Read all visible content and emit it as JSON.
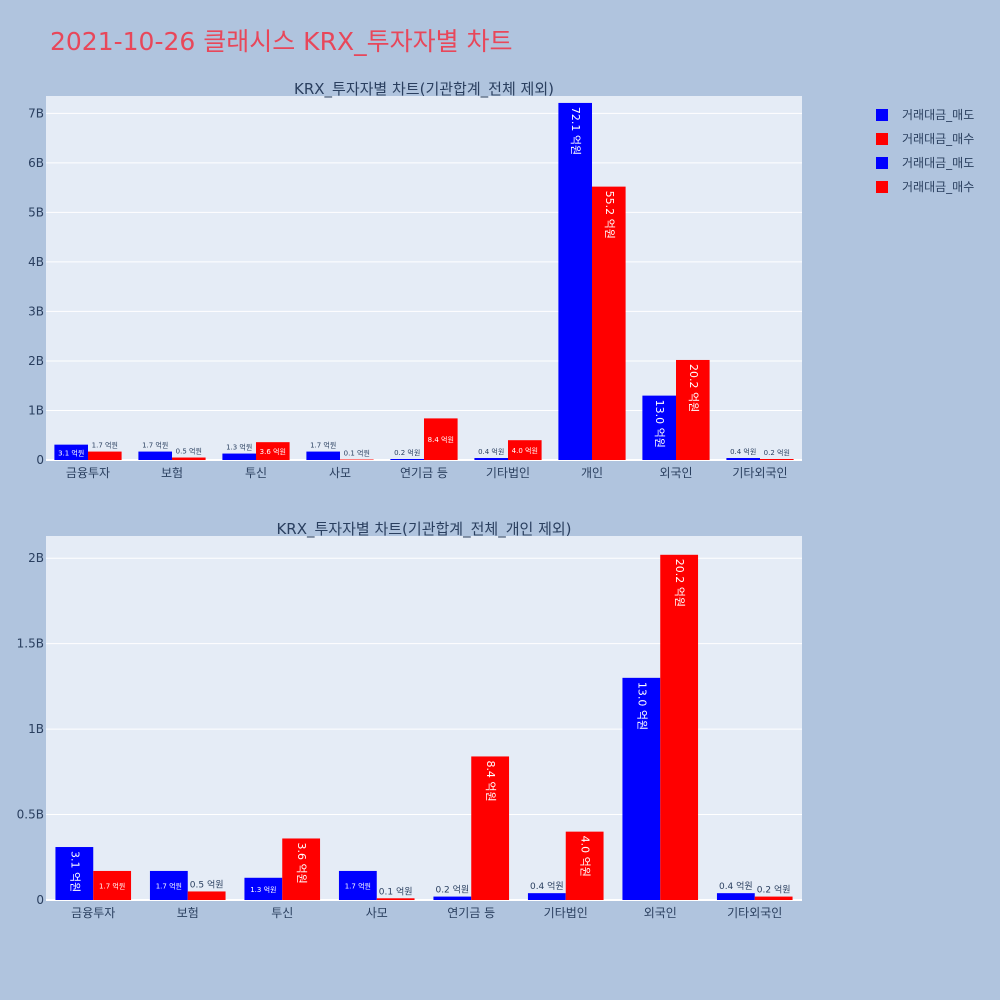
{
  "title": "2021-10-26 클래시스 KRX_투자자별 차트",
  "legend": [
    {
      "label": "거래대금_매도",
      "color": "#0000ff"
    },
    {
      "label": "거래대금_매수",
      "color": "#ff0000"
    },
    {
      "label": "거래대금_매도",
      "color": "#0000ff"
    },
    {
      "label": "거래대금_매수",
      "color": "#ff0000"
    }
  ],
  "colors": {
    "background": "#b0c4de",
    "plot_bg": "#e5ecf6",
    "title": "#e8475a",
    "sell": "#0000ff",
    "buy": "#ff0000"
  },
  "chart_data": [
    {
      "type": "bar",
      "title": "KRX_투자자별 차트(기관합계_전체 제외)",
      "categories": [
        "금융투자",
        "보험",
        "투신",
        "사모",
        "연기금 등",
        "기타법인",
        "개인",
        "외국인",
        "기타외국인"
      ],
      "ylim": [
        0,
        7.35
      ],
      "yticks": [
        {
          "value": 0,
          "label": "0"
        },
        {
          "value": 1,
          "label": "1B"
        },
        {
          "value": 2,
          "label": "2B"
        },
        {
          "value": 3,
          "label": "3B"
        },
        {
          "value": 4,
          "label": "4B"
        },
        {
          "value": 5,
          "label": "5B"
        },
        {
          "value": 6,
          "label": "6B"
        },
        {
          "value": 7,
          "label": "7B"
        }
      ],
      "series": [
        {
          "name": "거래대금_매도",
          "color": "#0000ff",
          "values": [
            0.31,
            0.17,
            0.13,
            0.17,
            0.02,
            0.04,
            7.21,
            1.3,
            0.04
          ],
          "labels": [
            "3.1 억원",
            "1.7 억원",
            "1.3 억원",
            "1.7 억원",
            "0.2 억원",
            "0.4 억원",
            "72.1 억원",
            "13.0 억원",
            "0.4 억원"
          ]
        },
        {
          "name": "거래대금_매수",
          "color": "#ff0000",
          "values": [
            0.17,
            0.05,
            0.36,
            0.01,
            0.84,
            0.4,
            5.52,
            2.02,
            0.02
          ],
          "labels": [
            "1.7 억원",
            "0.5 억원",
            "3.6 억원",
            "0.1 억원",
            "8.4 억원",
            "4.0 억원",
            "55.2 억원",
            "20.2 억원",
            "0.2 억원"
          ]
        }
      ]
    },
    {
      "type": "bar",
      "title": "KRX_투자자별 차트(기관합계_전체_개인 제외)",
      "categories": [
        "금융투자",
        "보험",
        "투신",
        "사모",
        "연기금 등",
        "기타법인",
        "외국인",
        "기타외국인"
      ],
      "ylim": [
        0,
        2.13
      ],
      "yticks": [
        {
          "value": 0,
          "label": "0"
        },
        {
          "value": 0.5,
          "label": "0.5B"
        },
        {
          "value": 1,
          "label": "1B"
        },
        {
          "value": 1.5,
          "label": "1.5B"
        },
        {
          "value": 2,
          "label": "2B"
        }
      ],
      "series": [
        {
          "name": "거래대금_매도",
          "color": "#0000ff",
          "values": [
            0.31,
            0.17,
            0.13,
            0.17,
            0.02,
            0.04,
            1.3,
            0.04
          ],
          "labels": [
            "3.1 억원",
            "1.7 억원",
            "1.3 억원",
            "1.7 억원",
            "0.2 억원",
            "0.4 억원",
            "13.0 억원",
            "0.4 억원"
          ]
        },
        {
          "name": "거래대금_매수",
          "color": "#ff0000",
          "values": [
            0.17,
            0.05,
            0.36,
            0.01,
            0.84,
            0.4,
            2.02,
            0.02
          ],
          "labels": [
            "1.7 억원",
            "0.5 억원",
            "3.6 억원",
            "0.1 억원",
            "8.4 억원",
            "4.0 억원",
            "20.2 억원",
            "0.2 억원"
          ]
        }
      ]
    }
  ]
}
